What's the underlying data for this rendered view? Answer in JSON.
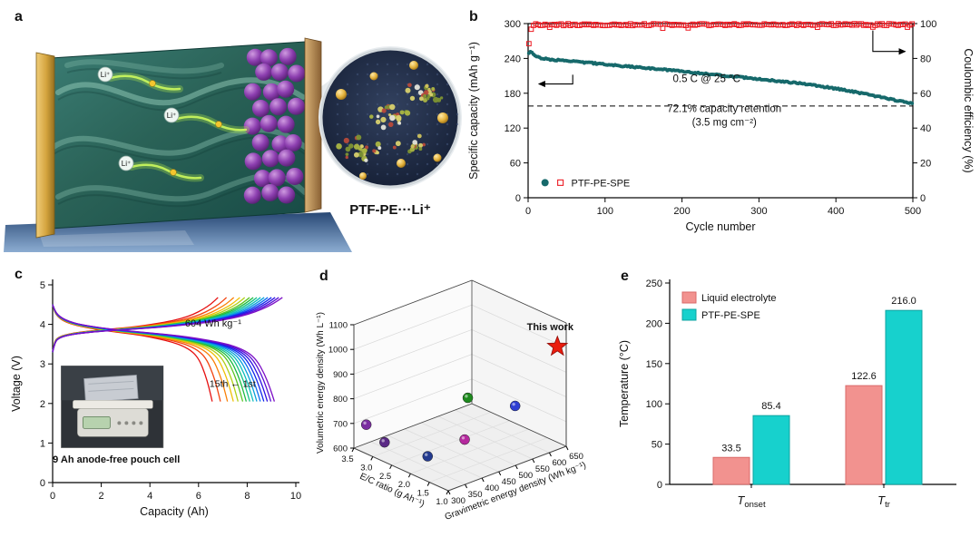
{
  "figure": {
    "panel_labels": {
      "a": "a",
      "b": "b",
      "c": "c",
      "d": "d",
      "e": "e"
    }
  },
  "panels": {
    "a": {
      "li_ion_label": "Li⁺",
      "inset_label": "PTF-PE···Li⁺"
    }
  },
  "chart_data": {
    "b": {
      "type": "scatter",
      "xlabel": "Cycle number",
      "ylabel_left": "Specific capacity (mAh g⁻¹)",
      "ylabel_right": "Coulombic efficiency (%)",
      "xlim": [
        0,
        500
      ],
      "ylim_left": [
        0,
        300
      ],
      "ylim_right": [
        0,
        100
      ],
      "xticks": [
        0,
        100,
        200,
        300,
        400,
        500
      ],
      "yticks_left": [
        0,
        60,
        120,
        180,
        240,
        300
      ],
      "yticks_right": [
        0,
        20,
        40,
        60,
        80,
        100
      ],
      "capacity_series": {
        "name": "PTF-PE-SPE specific capacity",
        "color": "#16696b",
        "marker": "filled-circle",
        "anchors": [
          [
            1,
            250
          ],
          [
            4,
            252
          ],
          [
            8,
            244
          ],
          [
            15,
            241
          ],
          [
            30,
            238
          ],
          [
            50,
            236
          ],
          [
            75,
            233
          ],
          [
            100,
            230
          ],
          [
            130,
            226
          ],
          [
            160,
            223
          ],
          [
            190,
            219
          ],
          [
            220,
            215
          ],
          [
            250,
            211
          ],
          [
            280,
            207
          ],
          [
            310,
            203
          ],
          [
            340,
            199
          ],
          [
            370,
            194
          ],
          [
            400,
            188
          ],
          [
            430,
            181
          ],
          [
            460,
            173
          ],
          [
            485,
            166
          ],
          [
            500,
            162
          ]
        ]
      },
      "efficiency_series": {
        "name": "Coulombic efficiency",
        "color": "#ec1c24",
        "marker": "open-square",
        "anchors": [
          [
            1,
            88
          ],
          [
            2,
            93
          ],
          [
            3,
            96
          ],
          [
            5,
            98.5
          ],
          [
            10,
            99.4
          ],
          [
            500,
            99.4
          ]
        ]
      },
      "retention_line_capacity": 158,
      "annotations": {
        "rate": "0.5 C @ 25 °C",
        "retention_1": "72.1% capacity retention",
        "retention_2": "(3.5 mg cm⁻²)"
      },
      "legend_label": "PTF-PE-SPE"
    },
    "c": {
      "type": "line",
      "xlabel": "Capacity (Ah)",
      "ylabel": "Voltage (V)",
      "xlim": [
        0,
        10
      ],
      "ylim": [
        0,
        5
      ],
      "xticks": [
        0,
        2,
        4,
        6,
        8,
        10
      ],
      "yticks": [
        0,
        1,
        2,
        3,
        4,
        5
      ],
      "cycle_capacities_ah": [
        9.45,
        9.3,
        9.15,
        9.0,
        8.85,
        8.7,
        8.55,
        8.4,
        8.25,
        8.1,
        7.9,
        7.7,
        7.45,
        7.15,
        6.8
      ],
      "cycle_colors": [
        "hsl(276,85%,42%)",
        "hsl(262,85%,45%)",
        "hsl(248,85%,48%)",
        "hsl(234,85%,50%)",
        "hsl(215,90%,50%)",
        "hsl(197,90%,45%)",
        "hsl(180,85%,40%)",
        "hsl(160,80%,42%)",
        "hsl(135,75%,42%)",
        "hsl(100,70%,45%)",
        "hsl(70,80%,45%)",
        "hsl(48,95%,48%)",
        "hsl(30,95%,50%)",
        "hsl(14,90%,50%)",
        "hsl(0,88%,48%)"
      ],
      "charge_profile": [
        [
          0,
          3.3
        ],
        [
          0.01,
          3.56
        ],
        [
          0.03,
          3.66
        ],
        [
          0.07,
          3.73
        ],
        [
          0.13,
          3.78
        ],
        [
          0.2,
          3.82
        ],
        [
          0.3,
          3.86
        ],
        [
          0.4,
          3.9
        ],
        [
          0.5,
          3.94
        ],
        [
          0.6,
          4.0
        ],
        [
          0.7,
          4.07
        ],
        [
          0.78,
          4.15
        ],
        [
          0.85,
          4.25
        ],
        [
          0.91,
          4.38
        ],
        [
          0.96,
          4.52
        ],
        [
          1,
          4.68
        ]
      ],
      "discharge_profile": [
        [
          0,
          4.5
        ],
        [
          0.01,
          4.34
        ],
        [
          0.03,
          4.2
        ],
        [
          0.07,
          4.08
        ],
        [
          0.13,
          3.99
        ],
        [
          0.22,
          3.91
        ],
        [
          0.33,
          3.84
        ],
        [
          0.45,
          3.78
        ],
        [
          0.56,
          3.72
        ],
        [
          0.66,
          3.64
        ],
        [
          0.75,
          3.55
        ],
        [
          0.82,
          3.45
        ],
        [
          0.88,
          3.3
        ],
        [
          0.92,
          3.1
        ],
        [
          0.955,
          2.75
        ],
        [
          0.98,
          2.4
        ],
        [
          1,
          2.05
        ]
      ],
      "annotations": {
        "energy": "604 Wh kg⁻¹",
        "cycles": "15th ← 1st",
        "caption": "9 Ah anode-free pouch cell"
      }
    },
    "d": {
      "type": "scatter",
      "projection": "3d",
      "xlabel": "E/C ratio (g Ah⁻¹)",
      "xticks": [
        "3.5",
        "3.0",
        "2.5",
        "2.0",
        "1.5",
        "1.0"
      ],
      "xlim": [
        3.5,
        1.0
      ],
      "ylabel": "Gravimetric energy density (Wh kg⁻¹)",
      "yticks": [
        300,
        350,
        400,
        450,
        500,
        550,
        600,
        650
      ],
      "ylim": [
        300,
        650
      ],
      "zlabel": "Volumetric energy density (Wh L⁻¹)",
      "zticks": [
        600,
        700,
        800,
        900,
        1000,
        1100
      ],
      "zlim": [
        600,
        1100
      ],
      "points": [
        {
          "ec": 3.35,
          "grav": 320,
          "vol": 695,
          "color": "#7a2da0"
        },
        {
          "ec": 3.0,
          "grav": 335,
          "vol": 640,
          "color": "#5b2a86"
        },
        {
          "ec": 2.35,
          "grav": 390,
          "vol": 600,
          "color": "#233a8f"
        },
        {
          "ec": 2.0,
          "grav": 470,
          "vol": 820,
          "color": "#1e8a1e"
        },
        {
          "ec": 1.95,
          "grav": 455,
          "vol": 662,
          "color": "#b5299e"
        },
        {
          "ec": 1.55,
          "grav": 560,
          "vol": 772,
          "color": "#2f3fd3"
        }
      ],
      "highlight": {
        "label": "This work",
        "ec": 1.1,
        "grav": 635,
        "vol": 1005,
        "color": "#ea1c0d"
      }
    },
    "e": {
      "type": "bar",
      "ylabel": "Temperature (°C)",
      "ylim": [
        0,
        250
      ],
      "yticks": [
        0,
        50,
        100,
        150,
        200,
        250
      ],
      "categories": [
        {
          "base": "T",
          "sub": "onset"
        },
        {
          "base": "T",
          "sub": "tr"
        }
      ],
      "series": [
        {
          "name": "Liquid electrolyte",
          "color": "#f2928f",
          "edge": "#d96a6a",
          "values": [
            33.5,
            122.6
          ]
        },
        {
          "name": "PTF-PE-SPE",
          "color": "#17d1cd",
          "edge": "#0fa3a0",
          "values": [
            85.4,
            216.0
          ]
        }
      ],
      "value_labels": [
        [
          "33.5",
          "122.6"
        ],
        [
          "85.4",
          "216.0"
        ]
      ]
    }
  }
}
